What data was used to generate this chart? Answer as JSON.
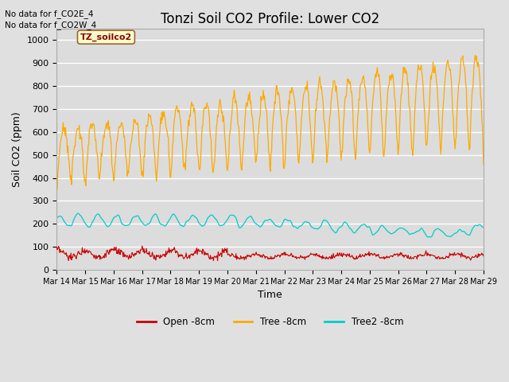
{
  "title": "Tonzi Soil CO2 Profile: Lower CO2",
  "xlabel": "Time",
  "ylabel": "Soil CO2 (ppm)",
  "annotations": [
    "No data for f_CO2E_4",
    "No data for f_CO2W_4"
  ],
  "legend_label": "TZ_soilco2",
  "ylim": [
    0,
    1050
  ],
  "yticks": [
    0,
    100,
    200,
    300,
    400,
    500,
    600,
    700,
    800,
    900,
    1000
  ],
  "xtick_labels": [
    "Mar 14",
    "Mar 15",
    "Mar 16",
    "Mar 17",
    "Mar 18",
    "Mar 19",
    "Mar 20",
    "Mar 21",
    "Mar 22",
    "Mar 23",
    "Mar 24",
    "Mar 25",
    "Mar 26",
    "Mar 27",
    "Mar 28",
    "Mar 29"
  ],
  "line_colors": {
    "open": "#cc0000",
    "tree": "#ffaa00",
    "tree2": "#00cccc"
  },
  "line_labels": [
    "Open -8cm",
    "Tree -8cm",
    "Tree2 -8cm"
  ],
  "background_color": "#e0e0e0",
  "plot_bg_color": "#dcdcdc",
  "grid_color": "#ffffff",
  "title_fontsize": 12,
  "label_fontsize": 9,
  "tick_fontsize": 8,
  "figsize": [
    6.4,
    4.8
  ],
  "dpi": 100
}
